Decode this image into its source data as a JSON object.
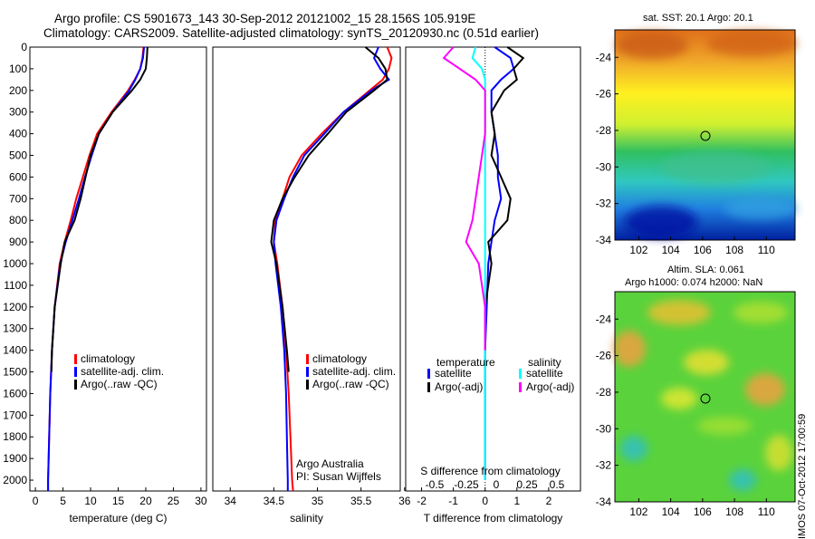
{
  "header": {
    "line1": "Argo profile: CS 5901673_143 30-Sep-2012 20121002_15 28.156S 105.919E",
    "line2": "Climatology: CARS2009. Satellite-adjusted climatology: synTS_20120930.nc (0.51d earlier)"
  },
  "sst_map": {
    "title": "sat. SST: 20.1 Argo: 20.1",
    "x_ticks": [
      "102",
      "104",
      "106",
      "108",
      "110"
    ],
    "y_ticks": [
      "-24",
      "-26",
      "-28",
      "-30",
      "-32",
      "-34"
    ]
  },
  "sla_map": {
    "title1": "Altim. SLA: 0.061",
    "title2": "Argo h1000: 0.074 h2000: NaN",
    "x_ticks": [
      "102",
      "104",
      "106",
      "108",
      "110"
    ],
    "y_ticks": [
      "-24",
      "-26",
      "-28",
      "-30",
      "-32",
      "-34"
    ]
  },
  "stamp": "IMOS 07-Oct-2012 17:00:59",
  "colors": {
    "climatology": "#ff0000",
    "satellite": "#0000ff",
    "argo": "#000000",
    "sal_sat": "#00ffff",
    "sal_argo": "#ff00ff"
  },
  "chart_data": [
    {
      "type": "line",
      "name": "temperature",
      "xlabel": "temperature (deg C)",
      "ylabel": "",
      "xlim": [
        -1,
        31
      ],
      "ylim": [
        2050,
        0
      ],
      "x_ticks": [
        "0",
        "5",
        "10",
        "15",
        "20",
        "25",
        "30"
      ],
      "y_ticks": [
        "0",
        "100",
        "200",
        "300",
        "400",
        "500",
        "600",
        "700",
        "800",
        "900",
        "1000",
        "1100",
        "1200",
        "1300",
        "1400",
        "1500",
        "1600",
        "1700",
        "1800",
        "1900",
        "2000"
      ],
      "legend": [
        "climatology",
        "satellite-adj. clim.",
        "Argo(..raw -QC)"
      ],
      "series": [
        {
          "name": "climatology",
          "y": [
            0,
            50,
            100,
            150,
            200,
            300,
            400,
            500,
            600,
            700,
            800,
            900,
            1000,
            1200,
            1400,
            1600,
            1800,
            2000,
            2050
          ],
          "x": [
            19.6,
            19.4,
            19,
            18,
            16.8,
            13.8,
            11.2,
            9.8,
            8.6,
            7.4,
            6.4,
            5.3,
            4.4,
            3.5,
            3,
            2.7,
            2.5,
            2.3,
            2.3
          ]
        },
        {
          "name": "satellite-adj. clim.",
          "y": [
            0,
            50,
            100,
            150,
            200,
            300,
            400,
            500,
            600,
            700,
            800,
            900,
            1000,
            1200,
            1400,
            1600,
            1800,
            2000,
            2050
          ],
          "x": [
            19.7,
            19.5,
            19,
            18.1,
            17,
            14,
            11.5,
            10.2,
            9,
            7.9,
            6.7,
            5.5,
            4.5,
            3.5,
            3,
            2.7,
            2.5,
            2.3,
            2.3
          ]
        },
        {
          "name": "Argo(..raw -QC)",
          "y": [
            0,
            50,
            100,
            150,
            200,
            300,
            400,
            500,
            600,
            700,
            800,
            900,
            1000,
            1200,
            1400,
            1500
          ],
          "x": [
            20.3,
            20.2,
            20,
            19,
            17.5,
            14,
            11.5,
            10,
            9.1,
            8.2,
            7.1,
            5.3,
            4.6,
            3.5,
            3,
            2.9
          ]
        }
      ]
    },
    {
      "type": "line",
      "name": "salinity",
      "xlabel": "salinity",
      "xlim": [
        33.8,
        35.95
      ],
      "ylim": [
        2050,
        0
      ],
      "x_ticks": [
        "34",
        "34.5",
        "35",
        "35.5",
        "36"
      ],
      "legend": [
        "climatology",
        "satellite-adj. clim.",
        "Argo(..raw -QC)"
      ],
      "annotations": [
        "Argo Australia",
        "PI: Susan Wijffels"
      ],
      "series": [
        {
          "name": "climatology",
          "y": [
            0,
            50,
            100,
            150,
            200,
            300,
            400,
            500,
            600,
            700,
            800,
            900,
            1000,
            1200,
            1400,
            1600,
            1800,
            2000,
            2050
          ],
          "x": [
            35.8,
            35.85,
            35.82,
            35.75,
            35.6,
            35.3,
            35.05,
            34.82,
            34.68,
            34.6,
            34.52,
            34.5,
            34.54,
            34.6,
            34.64,
            34.67,
            34.69,
            34.71,
            34.72
          ]
        },
        {
          "name": "satellite-adj. clim.",
          "y": [
            0,
            50,
            100,
            150,
            200,
            300,
            400,
            500,
            600,
            700,
            800,
            900,
            1000,
            1200,
            1400,
            1600,
            1800,
            2000,
            2050
          ],
          "x": [
            35.7,
            35.65,
            35.72,
            35.82,
            35.62,
            35.3,
            35.08,
            34.85,
            34.72,
            34.62,
            34.53,
            34.5,
            34.52,
            34.58,
            34.62,
            34.64,
            34.65,
            34.66,
            34.66
          ]
        },
        {
          "name": "Argo(..raw -QC)",
          "y": [
            0,
            50,
            100,
            150,
            200,
            300,
            400,
            500,
            600,
            700,
            800,
            900,
            1000,
            1200,
            1400,
            1500
          ],
          "x": [
            35.55,
            35.7,
            35.78,
            35.8,
            35.65,
            35.33,
            35.12,
            34.9,
            34.74,
            34.6,
            34.5,
            34.47,
            34.53,
            34.6,
            34.65,
            34.67
          ]
        }
      ]
    },
    {
      "type": "line",
      "name": "difference",
      "xlabel": "T difference from climatology",
      "xlabel_top": "S difference from climatology",
      "xlim": [
        -2.5,
        3
      ],
      "ylim": [
        2050,
        0
      ],
      "x_ticks": [
        "-2",
        "-1",
        "0",
        "1",
        "2"
      ],
      "x_ticks_top": [
        "-0.5",
        "-0.25",
        "0",
        "0.25",
        "0.5"
      ],
      "legend_titles": [
        "temperature",
        "salinity"
      ],
      "legend": [
        "satellite",
        "Argo(-adj)",
        "satellite",
        "Argo(-adj)"
      ],
      "series": [
        {
          "name": "temperature satellite",
          "y": [
            0,
            50,
            100,
            150,
            200,
            300,
            400,
            500,
            600,
            700,
            800,
            900,
            1000,
            1200,
            1400,
            1600,
            1800,
            2000
          ],
          "x": [
            0.3,
            0.8,
            0.9,
            0.5,
            0.2,
            0.2,
            0.3,
            0.4,
            0.4,
            0.5,
            0.3,
            0.2,
            0.1,
            0.05,
            0,
            0,
            0,
            0
          ]
        },
        {
          "name": "temperature Argo(-adj)",
          "y": [
            0,
            50,
            100,
            150,
            200,
            300,
            400,
            500,
            600,
            700,
            800,
            900,
            1000,
            1200,
            1400
          ],
          "x": [
            0.7,
            1.2,
            0.9,
            1,
            0.6,
            0.2,
            0.3,
            0.2,
            0.5,
            0.8,
            0.7,
            0.1,
            0.2,
            0,
            0
          ]
        },
        {
          "name": "salinity satellite",
          "y": [
            0,
            50,
            100,
            150,
            200,
            300,
            400,
            500,
            600,
            700,
            800,
            900,
            1000,
            1200,
            1400,
            1600,
            1800,
            2000
          ],
          "x": [
            -0.3,
            -0.4,
            -0.1,
            0,
            0,
            0,
            0,
            0,
            0,
            0,
            0,
            0,
            0,
            0,
            0,
            0,
            0,
            0
          ]
        },
        {
          "name": "salinity Argo(-adj)",
          "y": [
            0,
            50,
            100,
            150,
            200,
            300,
            400,
            500,
            600,
            700,
            800,
            900,
            1000,
            1200,
            1400
          ],
          "x": [
            -1,
            -1.3,
            -0.8,
            -0.3,
            0,
            0,
            0,
            -0.1,
            -0.2,
            -0.3,
            -0.4,
            -0.6,
            -0.2,
            0,
            0
          ]
        }
      ]
    }
  ]
}
